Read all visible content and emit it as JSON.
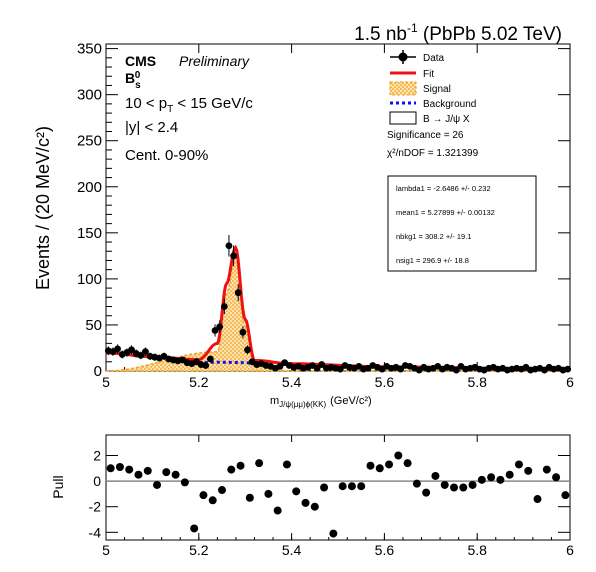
{
  "header": {
    "lumi": "1.5 nb",
    "lumi_sup": "-1",
    "collision": "(PbPb 5.02 TeV)"
  },
  "labels": {
    "cms": "CMS",
    "preliminary": "Preliminary",
    "particle": "B",
    "particle_sub": "s",
    "particle_sup": "0",
    "pt_pre": "10 < p",
    "pt_sub": "T",
    "pt_post": " < 15 GeV/c",
    "rapidity": "|y| < 2.4",
    "centrality": "Cent. 0-90%"
  },
  "legend": {
    "data": "Data",
    "fit": "Fit",
    "signal": "Signal",
    "background": "Background",
    "decay": "B → J/ψ X",
    "significance": "Significance = 26",
    "chi2": "χ²/nDOF = 1.321399"
  },
  "fit_params": {
    "lambda": "lambda1 = -2.6486 +/- 0.232",
    "mean": "mean1 = 5.27899 +/- 0.00132",
    "nbkg": "nbkg1 = 308.2 +/- 19.1",
    "nsig": "nsig1 = 296.9 +/- 18.8"
  },
  "colors": {
    "fit": "#ee1111",
    "signal": "#f0a020",
    "background": "#1010ee",
    "data": "#000000",
    "zero_line": "#888888"
  },
  "chart_data": [
    {
      "type": "scatter",
      "panel": "main",
      "title": "",
      "xlabel": "m",
      "xlabel_sub": "J/ψ(μμ)ϕ(KK)",
      "xlabel_unit": "(GeV/c²)",
      "ylabel": "Events / (20 MeV/c²)",
      "xlim": [
        5.0,
        6.0
      ],
      "ylim": [
        0,
        355
      ],
      "xticks": [
        "5",
        "5.2",
        "5.4",
        "5.6",
        "5.8",
        "6"
      ],
      "yticks": [
        "0",
        "50",
        "100",
        "150",
        "200",
        "250",
        "300",
        "350"
      ],
      "legend_position": "top-right",
      "series": [
        {
          "name": "Data",
          "x": [
            5.005,
            5.015,
            5.025,
            5.035,
            5.045,
            5.055,
            5.065,
            5.075,
            5.085,
            5.095,
            5.105,
            5.115,
            5.125,
            5.135,
            5.145,
            5.155,
            5.165,
            5.175,
            5.185,
            5.195,
            5.205,
            5.215,
            5.225,
            5.235,
            5.245,
            5.255,
            5.265,
            5.275,
            5.285,
            5.295,
            5.305,
            5.315,
            5.325,
            5.335,
            5.345,
            5.355,
            5.365,
            5.375,
            5.385,
            5.395,
            5.405,
            5.415,
            5.425,
            5.435,
            5.445,
            5.455,
            5.465,
            5.475,
            5.485,
            5.495,
            5.505,
            5.515,
            5.525,
            5.535,
            5.545,
            5.555,
            5.565,
            5.575,
            5.585,
            5.595,
            5.605,
            5.615,
            5.625,
            5.635,
            5.645,
            5.655,
            5.665,
            5.675,
            5.685,
            5.695,
            5.705,
            5.715,
            5.725,
            5.735,
            5.745,
            5.755,
            5.765,
            5.775,
            5.785,
            5.795,
            5.805,
            5.815,
            5.825,
            5.835,
            5.845,
            5.855,
            5.865,
            5.875,
            5.885,
            5.895,
            5.905,
            5.915,
            5.925,
            5.935,
            5.945,
            5.955,
            5.965,
            5.975,
            5.985,
            5.995
          ],
          "y": [
            22,
            21,
            24,
            18,
            20,
            23,
            19,
            17,
            21,
            16,
            15,
            14,
            16,
            13,
            12,
            11,
            12,
            9,
            8,
            10,
            7,
            6,
            13,
            44,
            48,
            70,
            136,
            125,
            85,
            42,
            23,
            10,
            7,
            8,
            6,
            5,
            3,
            5,
            9,
            6,
            4,
            5,
            3,
            4,
            6,
            3,
            7,
            3,
            4,
            3,
            2,
            6,
            4,
            3,
            5,
            2,
            3,
            6,
            4,
            2,
            5,
            3,
            4,
            2,
            6,
            5,
            3,
            1,
            4,
            2,
            3,
            5,
            2,
            4,
            3,
            1,
            5,
            2,
            3,
            4,
            2,
            1,
            3,
            4,
            2,
            3,
            1,
            2,
            3,
            2,
            4,
            1,
            2,
            3,
            1,
            4,
            2,
            3,
            1,
            2
          ]
        },
        {
          "name": "Fit",
          "x": [
            5.0,
            5.1,
            5.2,
            5.24,
            5.26,
            5.279,
            5.3,
            5.32,
            5.4,
            5.6,
            6.0
          ],
          "y": [
            19.6,
            15.5,
            12.4,
            30,
            95,
            134,
            56,
            11.5,
            7.9,
            4.6,
            1.6
          ]
        },
        {
          "name": "Signal",
          "x": [
            5.0,
            5.24,
            5.26,
            5.279,
            5.3,
            5.32,
            5.4,
            6.0
          ],
          "y": [
            0,
            21,
            85,
            124,
            48,
            5,
            0,
            0
          ]
        },
        {
          "name": "Background",
          "x": [
            5.2,
            5.24,
            5.28,
            5.3,
            5.32
          ],
          "y": [
            9,
            9.5,
            9.2,
            9,
            8.5
          ]
        }
      ]
    },
    {
      "type": "scatter",
      "panel": "pull",
      "ylabel": "Pull",
      "xlim": [
        5.0,
        6.0
      ],
      "ylim": [
        -4.6,
        3.6
      ],
      "xticks": [
        "5",
        "5.2",
        "5.4",
        "5.6",
        "5.8",
        "6"
      ],
      "yticks": [
        "-4",
        "-2",
        "0",
        "2"
      ],
      "series": [
        {
          "name": "Pull",
          "x": [
            5.01,
            5.03,
            5.05,
            5.07,
            5.09,
            5.11,
            5.13,
            5.15,
            5.17,
            5.19,
            5.21,
            5.23,
            5.25,
            5.27,
            5.29,
            5.31,
            5.33,
            5.35,
            5.37,
            5.39,
            5.41,
            5.43,
            5.45,
            5.47,
            5.49,
            5.51,
            5.53,
            5.55,
            5.57,
            5.59,
            5.61,
            5.63,
            5.65,
            5.67,
            5.69,
            5.71,
            5.73,
            5.75,
            5.77,
            5.79,
            5.81,
            5.83,
            5.85,
            5.87,
            5.89,
            5.91,
            5.93,
            5.95,
            5.97,
            5.99
          ],
          "y": [
            1.0,
            1.1,
            0.9,
            0.5,
            0.8,
            -0.3,
            0.7,
            0.5,
            -0.1,
            -3.7,
            -1.1,
            -1.5,
            -0.7,
            0.9,
            1.2,
            -1.3,
            1.4,
            -1.0,
            -2.3,
            1.3,
            -0.8,
            -1.7,
            -2.0,
            -0.5,
            -4.1,
            -0.4,
            -0.4,
            -0.4,
            1.2,
            1.0,
            1.3,
            2.0,
            1.4,
            -0.2,
            -0.9,
            0.4,
            -0.3,
            -0.5,
            -0.5,
            -0.3,
            0.1,
            0.3,
            0.1,
            0.5,
            1.3,
            0.8,
            -1.4,
            0.9,
            0.3,
            -1.1
          ]
        }
      ]
    }
  ]
}
